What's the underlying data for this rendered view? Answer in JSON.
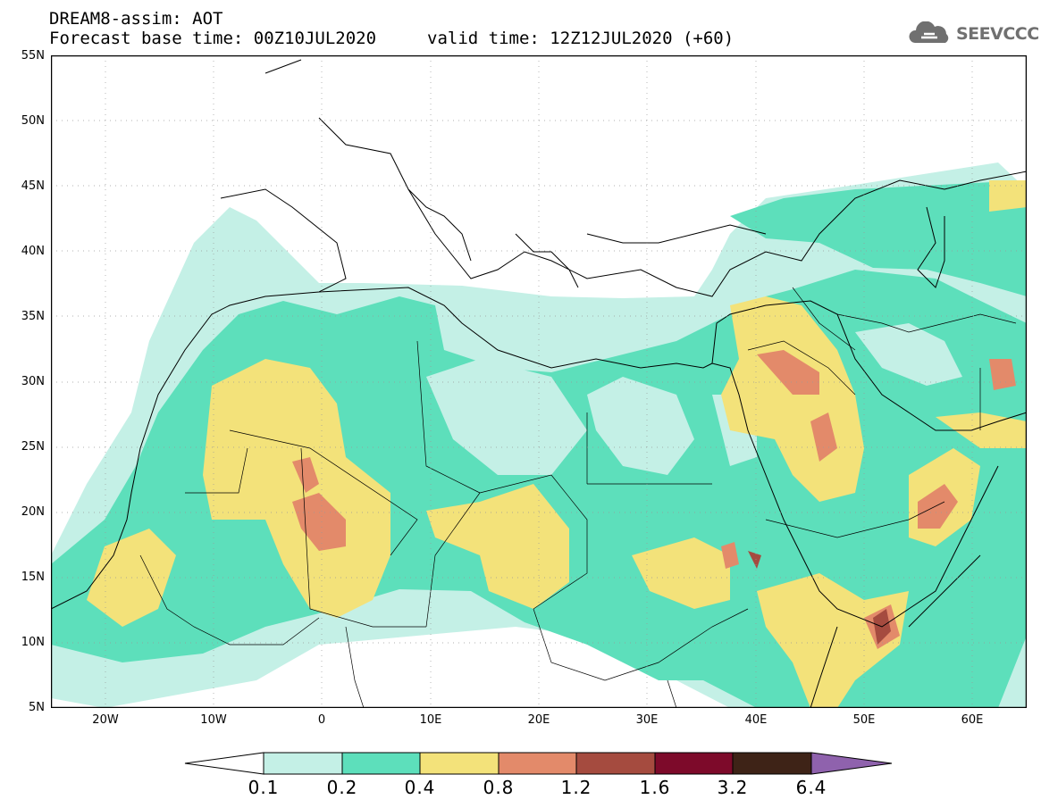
{
  "header": {
    "title": "DREAM8-assim: AOT",
    "base_time": "Forecast base time: 00Z10JUL2020",
    "valid_time": "valid time: 12Z12JUL2020 (+60)"
  },
  "logo": {
    "text": "SEEVCCC",
    "icon": "cloud-logo-icon"
  },
  "map": {
    "lat_labels": [
      "55N",
      "50N",
      "45N",
      "40N",
      "35N",
      "30N",
      "25N",
      "20N",
      "15N",
      "10N",
      "5N"
    ],
    "lon_labels": [
      "20W",
      "10W",
      "0",
      "10E",
      "20E",
      "30E",
      "40E",
      "50E",
      "60E"
    ],
    "extent": {
      "lon": [
        -25,
        65
      ],
      "lat": [
        5,
        55
      ]
    }
  },
  "colorbar": {
    "labels": [
      "0.1",
      "0.2",
      "0.4",
      "0.8",
      "1.2",
      "1.6",
      "3.2",
      "6.4"
    ],
    "colors": [
      "#ffffff",
      "#c4f0e6",
      "#5ddfbb",
      "#f3e27a",
      "#e38a6a",
      "#a54b3f",
      "#7d0a2a",
      "#3e2317",
      "#8f62ad"
    ]
  }
}
